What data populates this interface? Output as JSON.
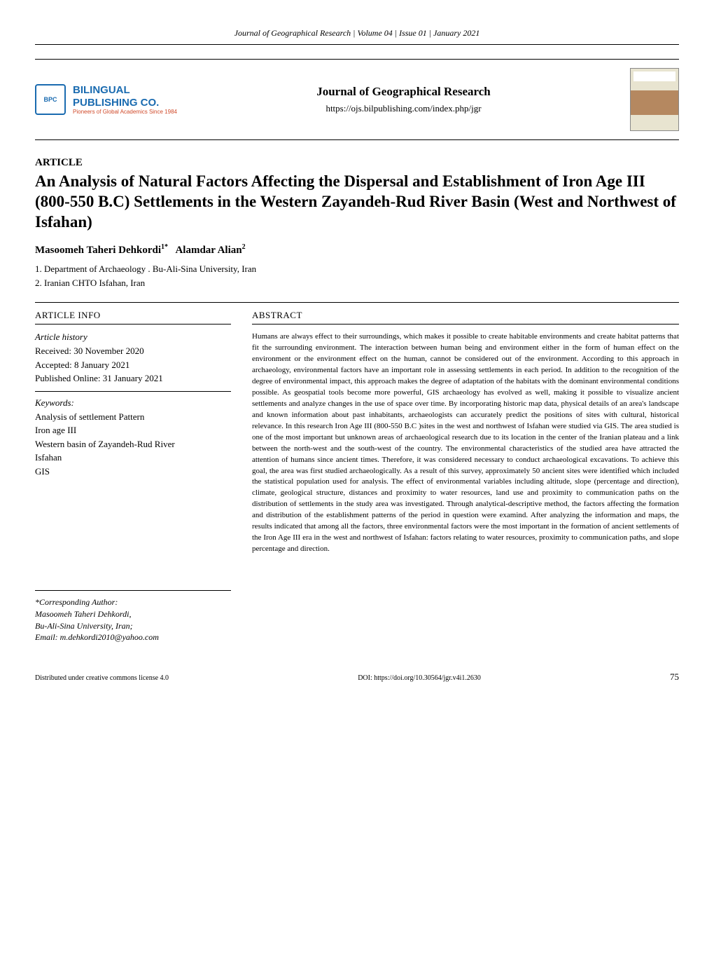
{
  "header": {
    "journal_line": "Journal of Geographical Research | Volume 04 | Issue 01 | January 2021"
  },
  "topbar": {
    "publisher_line1": "BILINGUAL",
    "publisher_line2": "PUBLISHING CO.",
    "publisher_tagline": "Pioneers of Global Academics Since 1984",
    "journal_title": "Journal of Geographical Research",
    "journal_url": "https://ojs.bilpublishing.com/index.php/jgr",
    "logo_text": "BPC"
  },
  "article": {
    "label": "ARTICLE",
    "title": "An Analysis of Natural Factors Affecting the Dispersal and Establishment of Iron Age III (800-550 B.C) Settlements in the Western Zayandeh-Rud River Basin (West and Northwest of Isfahan)",
    "authors_html": "Masoomeh Taheri Dehkordi",
    "author1_sup": "1*",
    "author2": "Alamdar Alian",
    "author2_sup": "2",
    "affiliation1": "1. Department of Archaeology . Bu-Ali-Sina University, Iran",
    "affiliation2": "2. Iranian CHTO Isfahan, Iran"
  },
  "info": {
    "header": "ARTICLE INFO",
    "history_label": "Article history",
    "received": "Received: 30 November 2020",
    "accepted": "Accepted: 8 January 2021",
    "published": "Published Online: 31 January 2021",
    "keywords_label": "Keywords:",
    "keywords": [
      "Analysis of settlement Pattern",
      "Iron age III",
      "Western basin of Zayandeh-Rud River",
      "Isfahan",
      "GIS"
    ]
  },
  "abstract": {
    "header": "ABSTRACT",
    "text": "Humans are always effect to their surroundings, which makes it possible to create habitable environments and create habitat patterns that fit the surrounding environment. The interaction between human being and environment either in the form of human effect on the environment or the environment effect on the human, cannot be considered out of the environment. According to this approach in archaeology, environmental factors have an important role in assessing settlements in each period. In addition to the recognition of the degree of environmental impact, this approach makes the degree of adaptation of the habitats with the dominant environmental conditions possible. As geospatial tools become more powerful, GIS archaeology has evolved as well, making it possible to visualize ancient settlements and analyze changes in the use of space over time.  By incorporating historic map data, physical details of an area's landscape and known information about past inhabitants, archaeologists can accurately predict the positions of sites with cultural, historical relevance.  In this research Iron Age III (800-550 B.C )sites in the west and northwest of Isfahan were studied via GIS. The area studied is one of the most important but unknown areas of archaeological research due to its location in the center of the Iranian plateau and a link between the north-west and the south-west of the country. The environmental characteristics of the studied area have attracted the attention of humans since ancient times. Therefore, it was considered necessary to conduct archaeological excavations. To achieve this goal, the area was first studied archaeologically. As a result of this survey, approximately 50 ancient sites were identified which included the statistical population used for analysis. The effect of environmental variables including altitude, slope (percentage and direction), climate, geological structure, distances and proximity to water resources, land use and proximity to communication paths on the distribution of settlements in the study area was investigated. Through analytical-descriptive method, the factors affecting the formation and distribution of the establishment patterns of the period in question were examind. After analyzing the information and maps, the results indicated that among all the factors, three environmental factors were the most important in the formation of ancient settlements of the Iron Age III era in the west and northwest of Isfahan: factors relating to water resources, proximity to communication paths, and slope percentage and direction."
  },
  "corresponding": {
    "label": "*Corresponding Author:",
    "name": " Masoomeh Taheri Dehkordi,",
    "affil": "Bu-Ali-Sina University, Iran;",
    "email": "Email: m.dehkordi2010@yahoo.com"
  },
  "footer": {
    "license": "Distributed under creative commons license 4.0",
    "doi": "DOI: https://doi.org/10.30564/jgr.v4i1.2630",
    "page": "75"
  },
  "colors": {
    "publisher_blue": "#1a6bb0",
    "tagline_red": "#d04a2a",
    "text": "#000000",
    "background": "#ffffff"
  },
  "typography": {
    "body_font": "Georgia, Times New Roman, serif",
    "title_fontsize": 23,
    "abstract_fontsize": 11,
    "info_fontsize": 13
  }
}
